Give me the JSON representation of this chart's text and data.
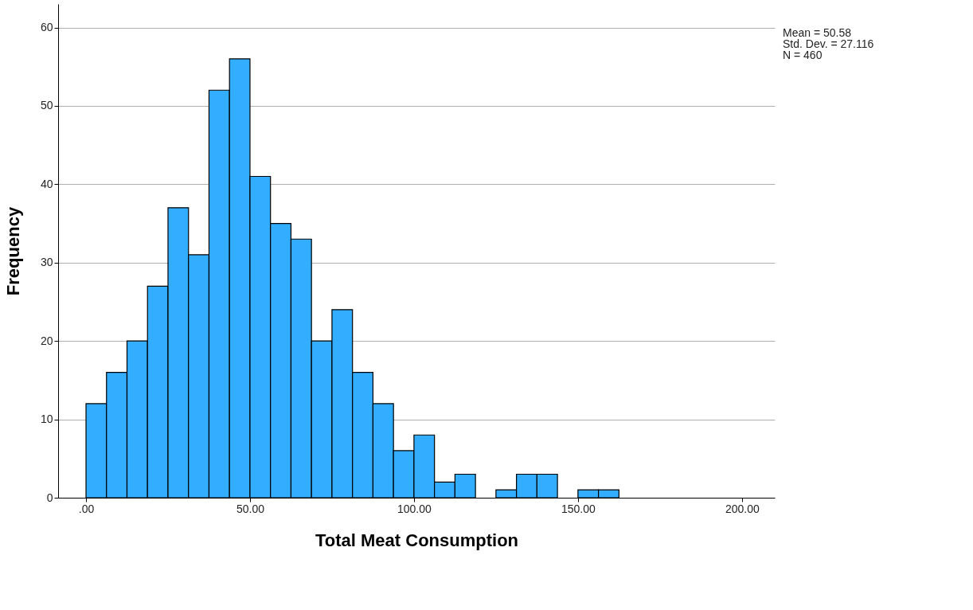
{
  "chart_data": {
    "type": "histogram",
    "xlabel": "Total Meat Consumption",
    "ylabel": "Frequency",
    "bins": [
      0,
      6.25,
      12.5,
      18.75,
      25,
      31.25,
      37.5,
      43.75,
      50,
      56.25,
      62.5,
      68.75,
      75,
      81.25,
      87.5,
      93.75,
      100,
      106.25,
      112.5,
      118.75,
      125,
      131.25,
      137.5,
      143.75,
      150,
      156.25,
      162.5
    ],
    "values": [
      12,
      16,
      20,
      27,
      37,
      31,
      52,
      56,
      41,
      35,
      33,
      20,
      24,
      16,
      12,
      6,
      8,
      2,
      3,
      0,
      1,
      3,
      3,
      0,
      1,
      1
    ],
    "color": "#33adff",
    "xlim": [
      -8.5,
      210
    ],
    "xticks": [
      {
        "value": 0,
        "label": ".00"
      },
      {
        "value": 50,
        "label": "50.00"
      },
      {
        "value": 100,
        "label": "100.00"
      },
      {
        "value": 150,
        "label": "150.00"
      },
      {
        "value": 200,
        "label": "200.00"
      }
    ],
    "ylim": [
      0,
      63
    ],
    "yticks": [
      0,
      10,
      20,
      30,
      40,
      50,
      60
    ],
    "grid": "y",
    "annotations": [
      "Mean = 50.58",
      "Std. Dev. = 27.116",
      "N = 460"
    ]
  }
}
